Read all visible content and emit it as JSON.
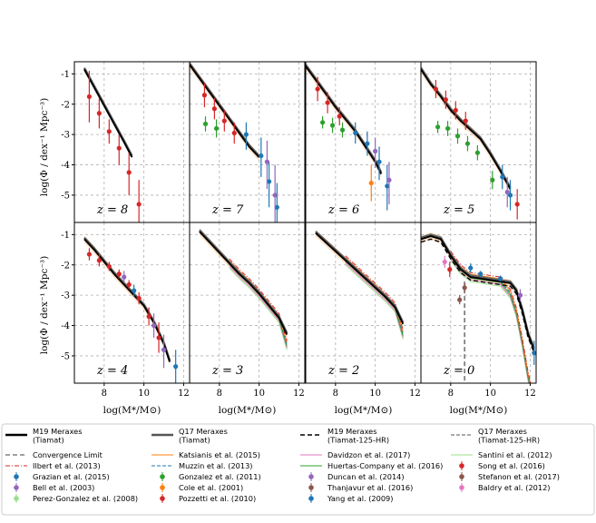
{
  "chart_data": {
    "type": "line",
    "title": "",
    "xlabel": "log(M*/M⊙)",
    "ylabel": "log(Φ / dex⁻¹ Mpc⁻³)",
    "xlim": [
      6.5,
      12.3
    ],
    "ylim": [
      -5.9,
      -0.6
    ],
    "xticks": [
      "8",
      "10",
      "12"
    ],
    "yticks": [
      "-1",
      "-2",
      "-3",
      "-4",
      "-5"
    ],
    "grid": true,
    "panels": [
      {
        "z": "z = 8",
        "model_x": [
          7.0,
          7.5,
          8.0,
          8.5,
          9.0,
          9.4
        ],
        "model_y": [
          -0.85,
          -1.45,
          -2.05,
          -2.65,
          -3.25,
          -3.75
        ],
        "obs": [
          {
            "x": 7.25,
            "y": -1.75,
            "lo": -2.6,
            "hi": -0.9,
            "color": "#d62728"
          },
          {
            "x": 7.75,
            "y": -2.3,
            "lo": -2.8,
            "hi": -1.8,
            "color": "#d62728"
          },
          {
            "x": 8.25,
            "y": -2.9,
            "lo": -3.3,
            "hi": -2.5,
            "color": "#d62728"
          },
          {
            "x": 8.75,
            "y": -3.45,
            "lo": -4.0,
            "hi": -3.0,
            "color": "#d62728"
          },
          {
            "x": 9.25,
            "y": -4.25,
            "lo": -5.0,
            "hi": -3.6,
            "color": "#d62728"
          },
          {
            "x": 9.75,
            "y": -5.3,
            "lo": -6.5,
            "hi": -4.5,
            "color": "#d62728"
          }
        ]
      },
      {
        "z": "z = 7",
        "model_x": [
          6.5,
          7.0,
          7.5,
          8.0,
          8.5,
          9.0,
          9.5,
          10.0
        ],
        "model_y": [
          -0.7,
          -1.15,
          -1.6,
          -2.05,
          -2.5,
          -2.95,
          -3.4,
          -3.75
        ],
        "obs": [
          {
            "x": 7.25,
            "y": -1.7,
            "lo": -2.1,
            "hi": -1.3,
            "color": "#d62728"
          },
          {
            "x": 7.75,
            "y": -2.15,
            "lo": -2.5,
            "hi": -1.8,
            "color": "#d62728"
          },
          {
            "x": 8.25,
            "y": -2.55,
            "lo": -2.9,
            "hi": -2.2,
            "color": "#d62728"
          },
          {
            "x": 8.75,
            "y": -2.95,
            "lo": -3.3,
            "hi": -2.6,
            "color": "#d62728"
          },
          {
            "x": 7.3,
            "y": -2.65,
            "lo": -2.9,
            "hi": -2.4,
            "color": "#2ca02c"
          },
          {
            "x": 7.85,
            "y": -2.8,
            "lo": -3.1,
            "hi": -2.5,
            "color": "#2ca02c"
          },
          {
            "x": 9.35,
            "y": -3.0,
            "lo": -3.5,
            "hi": -2.6,
            "color": "#1f77b4"
          },
          {
            "x": 10.1,
            "y": -3.7,
            "lo": -4.4,
            "hi": -3.1,
            "color": "#1f77b4"
          },
          {
            "x": 10.5,
            "y": -4.55,
            "lo": -5.4,
            "hi": -3.9,
            "color": "#1f77b4"
          },
          {
            "x": 10.9,
            "y": -5.4,
            "lo": -6.2,
            "hi": -4.6,
            "color": "#1f77b4"
          },
          {
            "x": 10.4,
            "y": -3.9,
            "lo": -4.8,
            "hi": -3.2,
            "color": "#9467bd"
          },
          {
            "x": 10.8,
            "y": -5.0,
            "lo": -6.2,
            "hi": -4.0,
            "color": "#9467bd"
          }
        ]
      },
      {
        "z": "z = 6",
        "model_x": [
          6.5,
          7.0,
          7.5,
          8.0,
          8.5,
          9.0,
          9.5,
          10.0,
          10.3
        ],
        "model_y": [
          -0.75,
          -1.2,
          -1.65,
          -2.1,
          -2.5,
          -2.9,
          -3.4,
          -3.9,
          -4.3
        ],
        "obs": [
          {
            "x": 7.1,
            "y": -1.5,
            "lo": -1.9,
            "hi": -1.1,
            "color": "#d62728"
          },
          {
            "x": 7.6,
            "y": -1.95,
            "lo": -2.3,
            "hi": -1.6,
            "color": "#d62728"
          },
          {
            "x": 8.2,
            "y": -2.4,
            "lo": -2.7,
            "hi": -2.1,
            "color": "#d62728"
          },
          {
            "x": 7.35,
            "y": -2.6,
            "lo": -2.8,
            "hi": -2.4,
            "color": "#2ca02c"
          },
          {
            "x": 7.85,
            "y": -2.7,
            "lo": -2.95,
            "hi": -2.45,
            "color": "#2ca02c"
          },
          {
            "x": 8.35,
            "y": -2.85,
            "lo": -3.1,
            "hi": -2.6,
            "color": "#2ca02c"
          },
          {
            "x": 9.0,
            "y": -2.95,
            "lo": -3.3,
            "hi": -2.6,
            "color": "#1f77b4"
          },
          {
            "x": 9.6,
            "y": -3.3,
            "lo": -3.7,
            "hi": -2.9,
            "color": "#1f77b4"
          },
          {
            "x": 10.2,
            "y": -3.9,
            "lo": -4.5,
            "hi": -3.4,
            "color": "#1f77b4"
          },
          {
            "x": 10.6,
            "y": -4.7,
            "lo": -5.5,
            "hi": -4.0,
            "color": "#1f77b4"
          },
          {
            "x": 10.0,
            "y": -3.55,
            "lo": -4.1,
            "hi": -3.1,
            "color": "#9467bd"
          },
          {
            "x": 10.7,
            "y": -4.5,
            "lo": -5.3,
            "hi": -3.9,
            "color": "#9467bd"
          },
          {
            "x": 9.8,
            "y": -4.6,
            "lo": -5.2,
            "hi": -4.0,
            "color": "#ff7f0e"
          }
        ]
      },
      {
        "z": "z = 5",
        "model_x": [
          6.5,
          7.0,
          7.5,
          8.0,
          8.5,
          9.0,
          9.5,
          10.0,
          10.5,
          11.0
        ],
        "model_y": [
          -0.85,
          -1.35,
          -1.75,
          -2.2,
          -2.55,
          -2.85,
          -3.15,
          -3.65,
          -4.2,
          -4.8
        ],
        "obs": [
          {
            "x": 7.25,
            "y": -1.5,
            "lo": -1.8,
            "hi": -1.2,
            "color": "#d62728"
          },
          {
            "x": 7.75,
            "y": -1.85,
            "lo": -2.15,
            "hi": -1.55,
            "color": "#d62728"
          },
          {
            "x": 8.25,
            "y": -2.2,
            "lo": -2.5,
            "hi": -1.9,
            "color": "#d62728"
          },
          {
            "x": 8.75,
            "y": -2.55,
            "lo": -2.85,
            "hi": -2.25,
            "color": "#d62728"
          },
          {
            "x": 7.35,
            "y": -2.75,
            "lo": -2.95,
            "hi": -2.55,
            "color": "#2ca02c"
          },
          {
            "x": 7.85,
            "y": -2.8,
            "lo": -3.05,
            "hi": -2.55,
            "color": "#2ca02c"
          },
          {
            "x": 8.35,
            "y": -3.05,
            "lo": -3.3,
            "hi": -2.8,
            "color": "#2ca02c"
          },
          {
            "x": 8.85,
            "y": -3.3,
            "lo": -3.55,
            "hi": -3.05,
            "color": "#2ca02c"
          },
          {
            "x": 9.35,
            "y": -3.6,
            "lo": -3.85,
            "hi": -3.35,
            "color": "#2ca02c"
          },
          {
            "x": 10.1,
            "y": -4.5,
            "lo": -4.8,
            "hi": -4.2,
            "color": "#2ca02c"
          },
          {
            "x": 10.6,
            "y": -4.4,
            "lo": -4.8,
            "hi": -4.0,
            "color": "#1f77b4"
          },
          {
            "x": 11.0,
            "y": -5.0,
            "lo": -5.5,
            "hi": -4.5,
            "color": "#1f77b4"
          },
          {
            "x": 11.35,
            "y": -5.3,
            "lo": -5.8,
            "hi": -4.8,
            "color": "#d62728"
          },
          {
            "x": 10.85,
            "y": -4.9,
            "lo": -5.4,
            "hi": -4.4,
            "color": "#9467bd"
          }
        ]
      },
      {
        "z": "z = 4",
        "model_x": [
          7.0,
          7.5,
          8.0,
          8.5,
          9.0,
          9.5,
          10.0,
          10.5,
          11.0,
          11.3
        ],
        "model_y": [
          -1.15,
          -1.5,
          -1.9,
          -2.3,
          -2.65,
          -3.0,
          -3.35,
          -3.9,
          -4.6,
          -5.2
        ],
        "obs": [
          {
            "x": 7.25,
            "y": -1.65,
            "lo": -1.85,
            "hi": -1.45,
            "color": "#d62728"
          },
          {
            "x": 7.75,
            "y": -1.85,
            "lo": -2.05,
            "hi": -1.65,
            "color": "#d62728"
          },
          {
            "x": 8.25,
            "y": -2.05,
            "lo": -2.2,
            "hi": -1.9,
            "color": "#d62728"
          },
          {
            "x": 8.75,
            "y": -2.3,
            "lo": -2.45,
            "hi": -2.15,
            "color": "#d62728"
          },
          {
            "x": 9.25,
            "y": -2.65,
            "lo": -2.8,
            "hi": -2.5,
            "color": "#d62728"
          },
          {
            "x": 9.75,
            "y": -3.1,
            "lo": -3.3,
            "hi": -2.9,
            "color": "#d62728"
          },
          {
            "x": 10.25,
            "y": -3.7,
            "lo": -4.0,
            "hi": -3.4,
            "color": "#d62728"
          },
          {
            "x": 10.75,
            "y": -4.4,
            "lo": -4.9,
            "hi": -3.9,
            "color": "#d62728"
          },
          {
            "x": 9.0,
            "y": -2.4,
            "lo": -2.6,
            "hi": -2.2,
            "color": "#9467bd"
          },
          {
            "x": 10.5,
            "y": -4.0,
            "lo": -4.4,
            "hi": -3.6,
            "color": "#9467bd"
          },
          {
            "x": 11.0,
            "y": -4.8,
            "lo": -5.4,
            "hi": -4.3,
            "color": "#9467bd"
          },
          {
            "x": 11.6,
            "y": -5.35,
            "lo": -5.9,
            "hi": -4.8,
            "color": "#1f77b4"
          },
          {
            "x": 9.5,
            "y": -2.85,
            "lo": -3.05,
            "hi": -2.65,
            "color": "#1f77b4"
          }
        ]
      },
      {
        "z": "z = 3",
        "model_x": [
          7.0,
          7.5,
          8.0,
          8.5,
          9.0,
          9.5,
          10.0,
          10.5,
          11.0,
          11.4
        ],
        "model_y": [
          -0.9,
          -1.25,
          -1.6,
          -1.95,
          -2.3,
          -2.6,
          -2.95,
          -3.35,
          -3.75,
          -4.3
        ],
        "obs": []
      },
      {
        "z": "z = 2",
        "model_x": [
          7.0,
          7.5,
          8.0,
          8.5,
          9.0,
          9.5,
          10.0,
          10.5,
          11.0,
          11.4
        ],
        "model_y": [
          -0.95,
          -1.25,
          -1.55,
          -1.85,
          -2.15,
          -2.45,
          -2.75,
          -3.05,
          -3.4,
          -3.95
        ],
        "obs": []
      },
      {
        "z": "z = 0",
        "model_x": [
          6.5,
          7.0,
          7.5,
          8.0,
          8.5,
          9.0,
          9.5,
          10.0,
          10.5,
          11.0,
          11.3,
          11.6,
          11.9,
          12.2
        ],
        "model_y": [
          -1.15,
          -1.05,
          -1.15,
          -1.7,
          -2.15,
          -2.4,
          -2.45,
          -2.5,
          -2.55,
          -2.6,
          -2.85,
          -3.5,
          -4.3,
          -4.8
        ],
        "obs": [
          {
            "x": 7.7,
            "y": -1.9,
            "lo": -2.1,
            "hi": -1.7,
            "color": "#e377c2"
          },
          {
            "x": 7.95,
            "y": -2.15,
            "lo": -2.4,
            "hi": -1.9,
            "color": "#d62728"
          },
          {
            "x": 8.45,
            "y": -3.15,
            "lo": -3.3,
            "hi": -3.0,
            "color": "#8c564b"
          },
          {
            "x": 8.7,
            "y": -2.75,
            "lo": -2.9,
            "hi": -2.6,
            "color": "#8c564b"
          },
          {
            "x": 9.0,
            "y": -2.1,
            "lo": -2.25,
            "hi": -1.95,
            "color": "#1f77b4"
          },
          {
            "x": 9.5,
            "y": -2.3,
            "lo": -2.4,
            "hi": -2.2,
            "color": "#1f77b4"
          },
          {
            "x": 10.5,
            "y": -2.45,
            "lo": -2.55,
            "hi": -2.35,
            "color": "#1f77b4"
          },
          {
            "x": 11.5,
            "y": -3.0,
            "lo": -3.2,
            "hi": -2.8,
            "color": "#9467bd"
          },
          {
            "x": 12.2,
            "y": -4.9,
            "lo": -5.3,
            "hi": -4.5,
            "color": "#1f77b4"
          }
        ]
      }
    ],
    "legend": [
      {
        "label": "M19 Meraxes\n(Tiamat)",
        "color": "#000000",
        "style": "solid-thick"
      },
      {
        "label": "Q17 Meraxes\n(Tiamat)",
        "color": "#555555",
        "style": "solid-thick"
      },
      {
        "label": "M19 Meraxes\n(Tiamat-125-HR)",
        "color": "#000000",
        "style": "dashed"
      },
      {
        "label": "Q17 Meraxes\n(Tiamat-125-HR)",
        "color": "#555555",
        "style": "dashed-thin"
      },
      {
        "label": "Convergence Limit",
        "color": "#808080",
        "style": "dashed"
      },
      {
        "label": "Katsianis et al. (2015)",
        "color": "#ff7f0e",
        "style": "line"
      },
      {
        "label": "Davidzon et al. (2017)",
        "color": "#e377c2",
        "style": "line"
      },
      {
        "label": "Santini et al. (2012)",
        "color": "#98df8a",
        "style": "line"
      },
      {
        "label": "Ilbert et al. (2013)",
        "color": "#d62728",
        "style": "dashdot"
      },
      {
        "label": "Muzzin et al. (2013)",
        "color": "#1f77b4",
        "style": "dashed-thin"
      },
      {
        "label": "Huertas-Company et al. (2016)",
        "color": "#2ca02c",
        "style": "line"
      },
      {
        "label": "Song et al. (2016)",
        "color": "#d62728",
        "style": "point"
      },
      {
        "label": "Grazian et al. (2015)",
        "color": "#1f77b4",
        "style": "square"
      },
      {
        "label": "Gonzalez et al. (2011)",
        "color": "#2ca02c",
        "style": "diamond"
      },
      {
        "label": "Duncan et al. (2014)",
        "color": "#9467bd",
        "style": "pentagon"
      },
      {
        "label": "Stefanon et al. (2017)",
        "color": "#8c564b",
        "style": "diamond"
      },
      {
        "label": "Bell et al. (2003)",
        "color": "#9467bd",
        "style": "square"
      },
      {
        "label": "Cole et al. (2001)",
        "color": "#ff7f0e",
        "style": "diamond"
      },
      {
        "label": "Thanjavur et al. (2016)",
        "color": "#8c564b",
        "style": "triangle"
      },
      {
        "label": "Baldry et al. (2012)",
        "color": "#e377c2",
        "style": "diamond"
      },
      {
        "label": "Perez-Gonzalez et al. (2008)",
        "color": "#98df8a",
        "style": "diamond-thin"
      },
      {
        "label": "Pozzetti et al. (2010)",
        "color": "#d62728",
        "style": "triangle-up"
      },
      {
        "label": "Yang et al. (2009)",
        "color": "#1f77b4",
        "style": "point"
      }
    ]
  }
}
